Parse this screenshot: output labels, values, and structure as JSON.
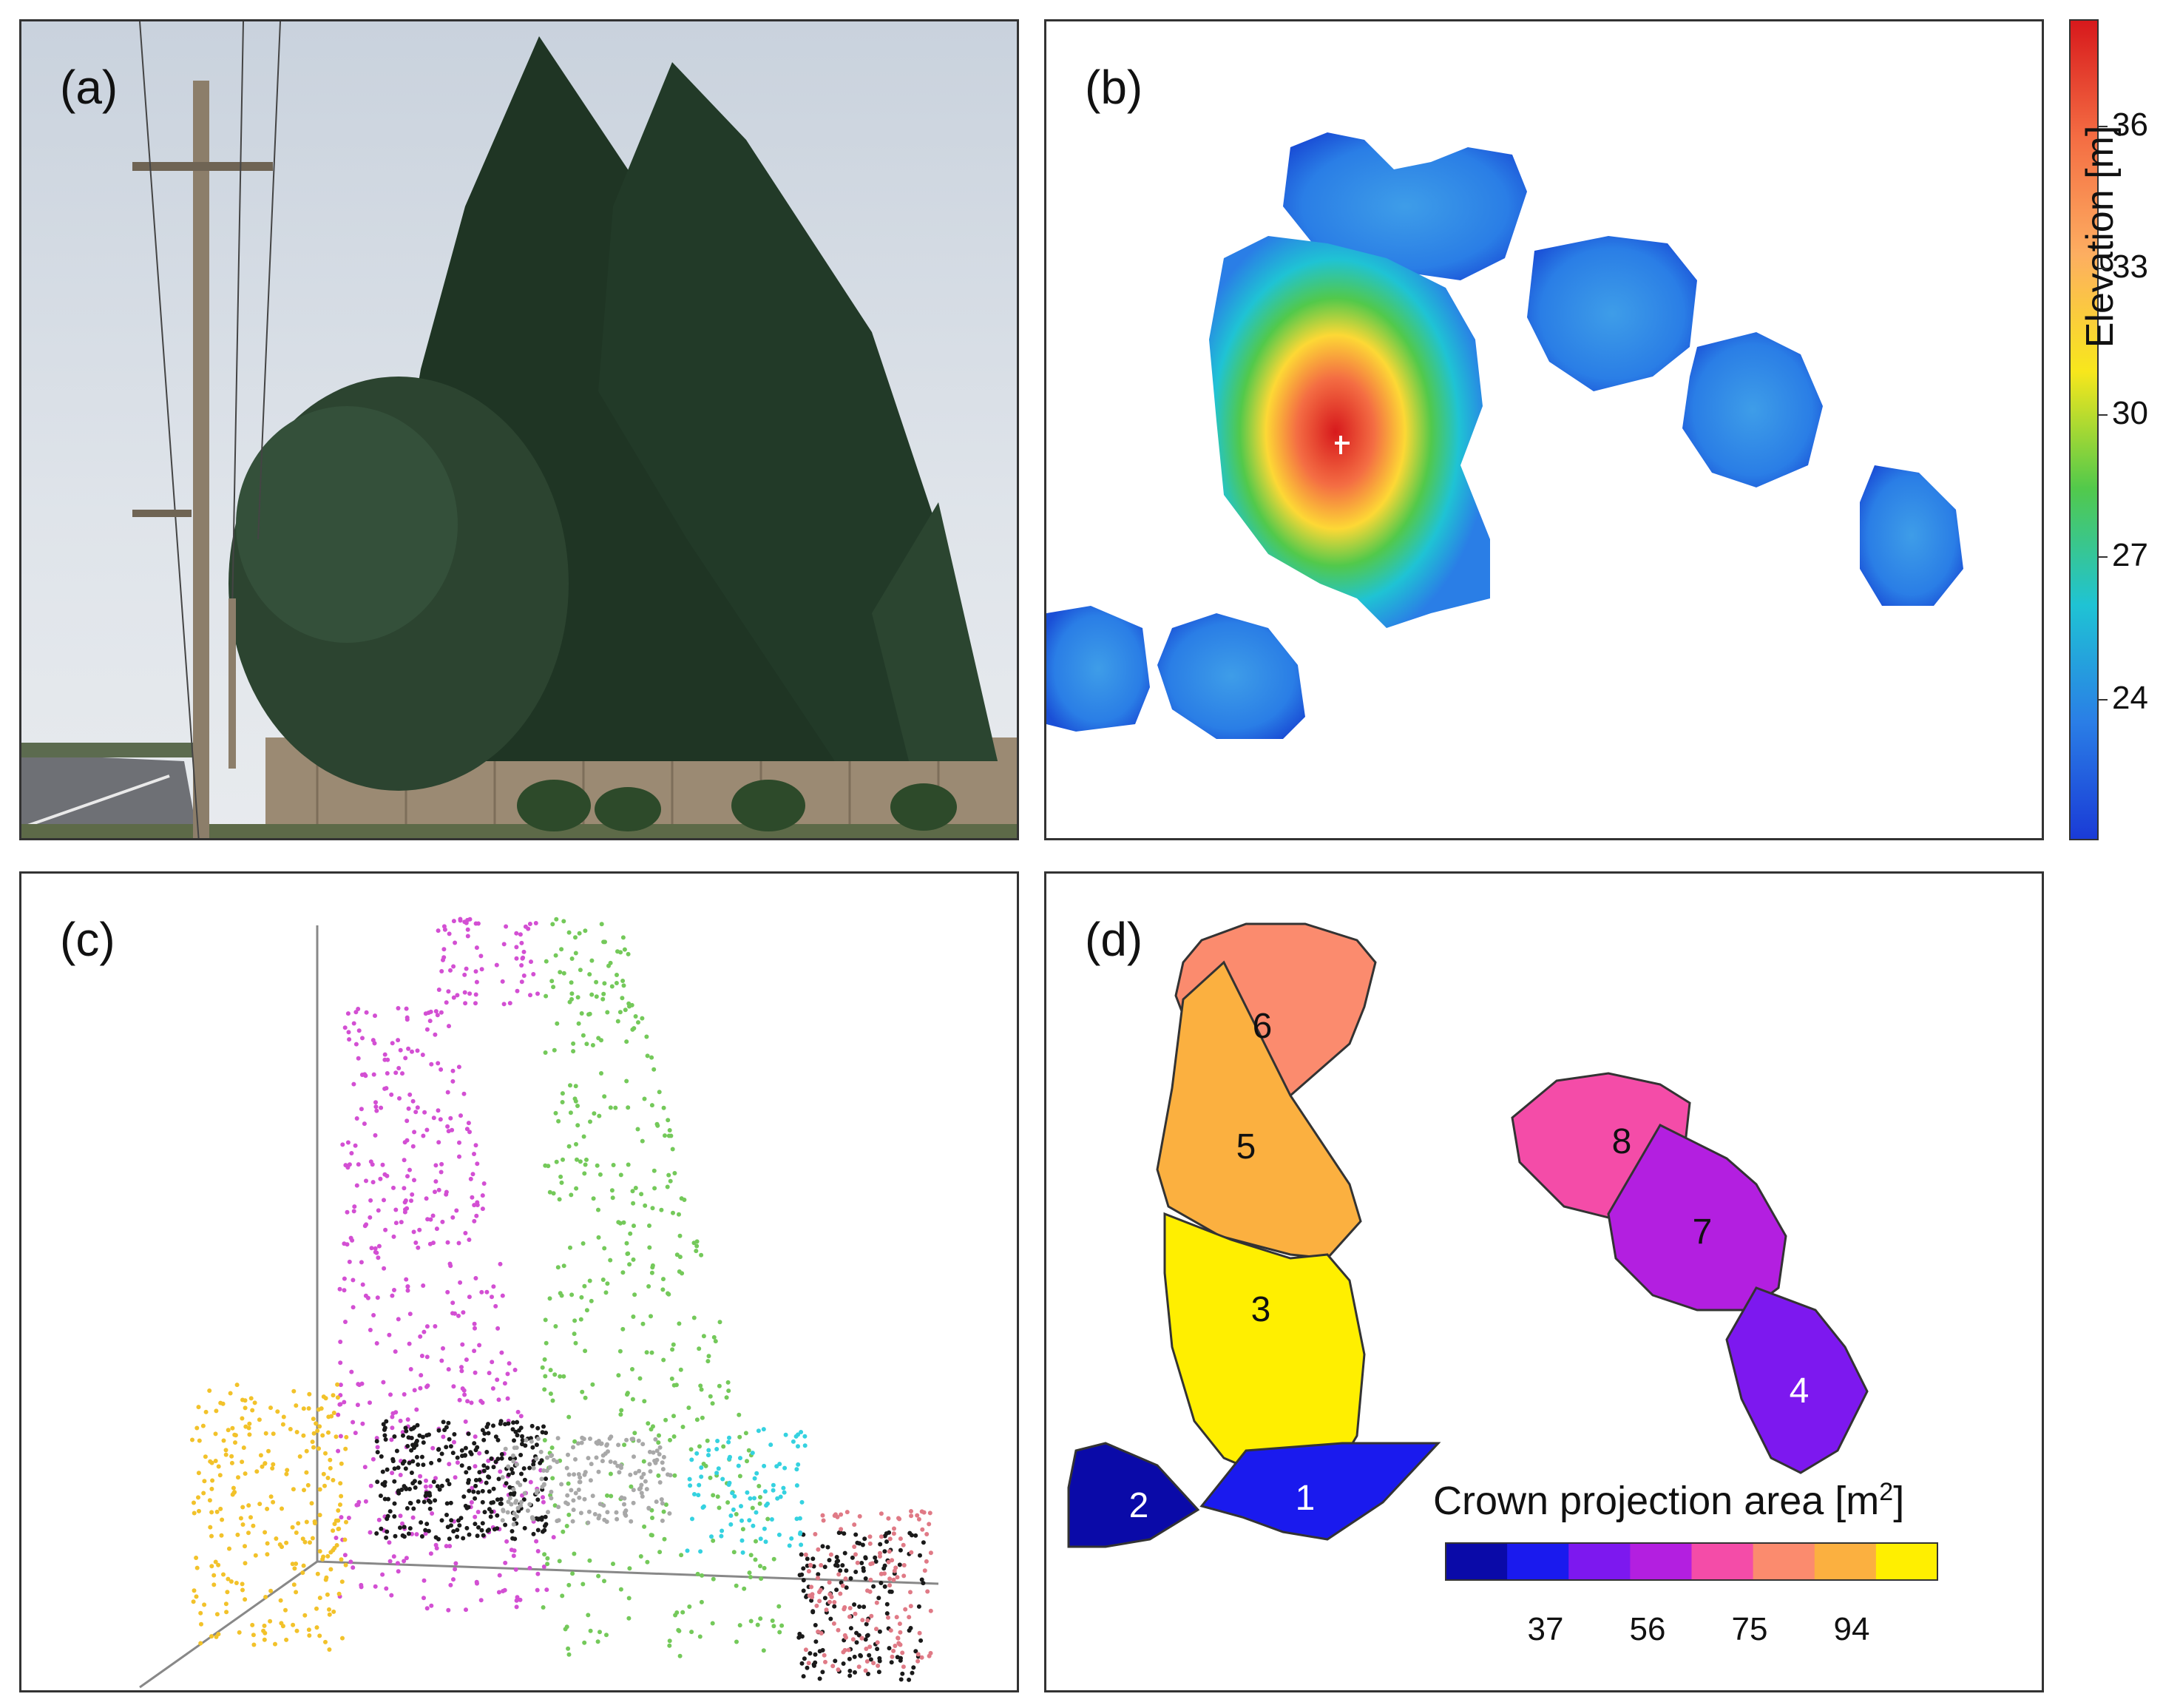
{
  "panels": {
    "a": {
      "label": "(a)"
    },
    "b": {
      "label": "(b)"
    },
    "c": {
      "label": "(c)"
    },
    "d": {
      "label": "(d)"
    }
  },
  "elevation_colorbar": {
    "title": "Elevation [m]",
    "ticks": [
      "36",
      "33",
      "30",
      "27",
      "24"
    ],
    "gradient_colors": [
      "#d7191c",
      "#f46d43",
      "#fdae61",
      "#f8e71c",
      "#52c94b",
      "#1fc3d4",
      "#2a7ee6",
      "#1a3bd6"
    ]
  },
  "crowns": [
    {
      "id": "1",
      "color": "#1a1aee"
    },
    {
      "id": "2",
      "color": "#0a0aa8"
    },
    {
      "id": "3",
      "color": "#ffef00"
    },
    {
      "id": "4",
      "color": "#7d18ef"
    },
    {
      "id": "5",
      "color": "#fbb040"
    },
    {
      "id": "6",
      "color": "#fb8b6e"
    },
    {
      "id": "7",
      "color": "#b31fe0"
    },
    {
      "id": "8",
      "color": "#f44ca8"
    }
  ],
  "crown_legend": {
    "title": "Crown projection area [m",
    "title_sup": "2",
    "title_end": "]",
    "ticks": [
      "37",
      "56",
      "75",
      "94"
    ],
    "colors": [
      "#0a0aa8",
      "#1a1aee",
      "#7d18ef",
      "#b31fe0",
      "#f44ca8",
      "#fb8b6e",
      "#fbb040",
      "#ffef00"
    ]
  },
  "point_cloud": {
    "cluster_colors": [
      "#d34fd3",
      "#74c95a",
      "#f2c22a",
      "#1a1a1a",
      "#a8a8a8",
      "#35d2e0",
      "#e07a86"
    ]
  }
}
